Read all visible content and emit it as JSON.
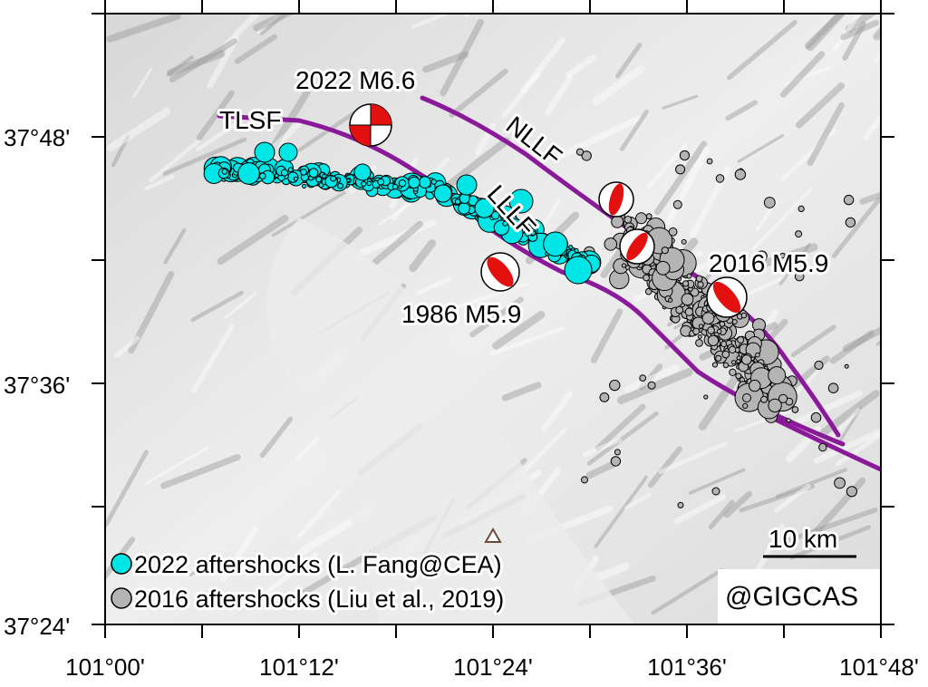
{
  "map": {
    "lon_range": [
      101.0,
      101.8
    ],
    "lat_range": [
      37.4,
      37.9
    ],
    "x_ticks": [
      "101°00'",
      "101°12'",
      "101°24'",
      "101°36'",
      "101°48'"
    ],
    "y_ticks": [
      "37°48'",
      "37°36'",
      "37°24'"
    ],
    "basemap": "grayscale shaded relief",
    "fault_color": "#8b1a9b",
    "faults": [
      {
        "label": "TLSF"
      },
      {
        "label": "NLLF"
      },
      {
        "label": "LLLF"
      }
    ],
    "mainshocks": [
      {
        "label": "2022 M6.6",
        "lon": 101.26,
        "lat": 37.8,
        "type": "strike-slip"
      },
      {
        "label": "1986 M5.9",
        "lon": 101.4,
        "lat": 37.65,
        "type": "thrust"
      },
      {
        "label": "2016 M5.9",
        "lon": 101.63,
        "lat": 37.66,
        "type": "thrust"
      }
    ],
    "extra_beachballs": [
      {
        "lon": 101.47,
        "lat": 37.73
      },
      {
        "lon": 101.49,
        "lat": 37.68
      }
    ],
    "station_icon": "triangle-icon",
    "scale_bar": {
      "label": "10 km"
    },
    "legend": [
      {
        "label": "2022 aftershocks (L. Fang@CEA)",
        "color": "#00e5e5"
      },
      {
        "label": "2016 aftershocks (Liu et al., 2019)",
        "color": "#b4b4b4"
      }
    ],
    "credit": "@GIGCAS",
    "aftershock_colors": {
      "y2022": "#00e5e5",
      "y2016": "#b4b4b4"
    }
  }
}
